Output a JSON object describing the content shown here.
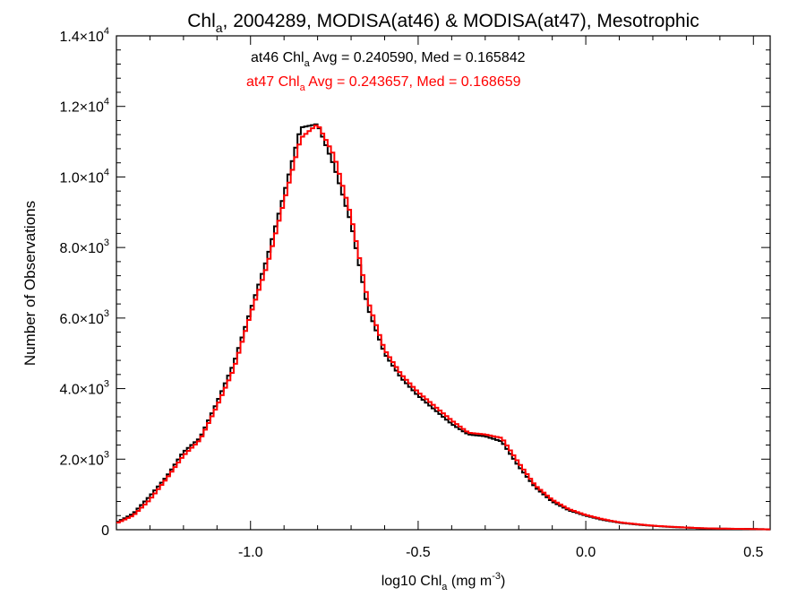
{
  "chart_data": {
    "type": "line",
    "title": "Chl_a, 2004289, MODISA(at46) & MODISA(at47), Mesotrophic",
    "xlabel": "log10 Chl_a (mg m^-3)",
    "ylabel": "Number of Observations",
    "xlim": [
      -1.4,
      0.55
    ],
    "ylim": [
      0,
      14000
    ],
    "xticks": [
      -1.0,
      -0.5,
      0.0,
      0.5
    ],
    "xtick_labels": [
      "-1.0",
      "-0.5",
      "0.0",
      "0.5"
    ],
    "yticks": [
      0,
      2000,
      4000,
      6000,
      8000,
      10000,
      12000,
      14000
    ],
    "ytick_labels": [
      "0",
      "2.0×10^3",
      "4.0×10^3",
      "6.0×10^3",
      "8.0×10^3",
      "1.0×10^4",
      "1.2×10^4",
      "1.4×10^4"
    ],
    "x": [
      -1.4,
      -1.35,
      -1.3,
      -1.25,
      -1.2,
      -1.15,
      -1.1,
      -1.05,
      -1.0,
      -0.95,
      -0.9,
      -0.85,
      -0.8,
      -0.75,
      -0.7,
      -0.65,
      -0.6,
      -0.55,
      -0.5,
      -0.45,
      -0.4,
      -0.35,
      -0.3,
      -0.25,
      -0.2,
      -0.15,
      -0.1,
      -0.05,
      0.0,
      0.05,
      0.1,
      0.15,
      0.2,
      0.25,
      0.3,
      0.35,
      0.4,
      0.45,
      0.5,
      0.55
    ],
    "series": [
      {
        "name": "at46",
        "color": "#000000",
        "values": [
          200,
          450,
          950,
          1500,
          2200,
          2600,
          3600,
          4700,
          6200,
          7700,
          9500,
          11400,
          11500,
          10300,
          8700,
          6300,
          5000,
          4300,
          3800,
          3400,
          3000,
          2700,
          2650,
          2500,
          1800,
          1200,
          800,
          550,
          400,
          280,
          200,
          150,
          110,
          80,
          60,
          40,
          30,
          25,
          20,
          10
        ]
      },
      {
        "name": "at47",
        "color": "#ff0000",
        "values": [
          180,
          400,
          850,
          1450,
          2100,
          2550,
          3500,
          4550,
          6100,
          7500,
          9300,
          11100,
          11500,
          10600,
          8900,
          6500,
          5100,
          4400,
          3900,
          3500,
          3100,
          2750,
          2700,
          2600,
          1900,
          1250,
          850,
          580,
          420,
          300,
          210,
          160,
          115,
          85,
          62,
          42,
          32,
          26,
          20,
          10
        ]
      }
    ],
    "annotations": [
      {
        "text_main": "at46 Chl",
        "sub": "a",
        "text_rest": " Avg = 0.240590, Med = 0.165842",
        "color": "#000000"
      },
      {
        "text_main": "at47 Chl",
        "sub": "a",
        "text_rest": " Avg = 0.243657, Med = 0.168659",
        "color": "#ff0000"
      }
    ],
    "grid": false,
    "legend": "none"
  },
  "title_parts": {
    "main": "Chl",
    "sub": "a",
    "rest": ", 2004289, MODISA(at46) & MODISA(at47), Mesotrophic"
  },
  "xlabel_parts": {
    "main": "log10 Chl",
    "sub": "a",
    "rest": " (mg m",
    "sup": "-3",
    "end": ")"
  },
  "ylabel_text": "Number of Observations",
  "ytick_parts": [
    {
      "mant": "0",
      "exp": ""
    },
    {
      "mant": "2.0×10",
      "exp": "3"
    },
    {
      "mant": "4.0×10",
      "exp": "3"
    },
    {
      "mant": "6.0×10",
      "exp": "3"
    },
    {
      "mant": "8.0×10",
      "exp": "3"
    },
    {
      "mant": "1.0×10",
      "exp": "4"
    },
    {
      "mant": "1.2×10",
      "exp": "4"
    },
    {
      "mant": "1.4×10",
      "exp": "4"
    }
  ]
}
